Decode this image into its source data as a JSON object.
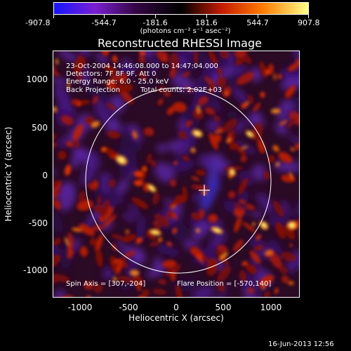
{
  "title": "Reconstructed RHESSI Image",
  "colorbar": {
    "ticks": [
      "-907.8",
      "-544.7",
      "-181.6",
      "181.6",
      "544.7",
      "907.8"
    ],
    "units": "(photons cm⁻² s⁻¹ asec⁻²)",
    "colors": [
      "#1515ff",
      "#7a1fd2",
      "#350645",
      "#000000",
      "#c51b00",
      "#ff7a00",
      "#ffff88"
    ]
  },
  "info": {
    "time_range": "23-Oct-2004 14:46:08.000 to 14:47:04.000",
    "detectors": "Detectors: 7F 8F 9F, Att 0",
    "energy": "Energy Range: 6.0 - 25.0 keV",
    "method": "Back Projection",
    "total_counts": "Total counts: 2.02E+03",
    "spin_axis": "Spin Axis = [307,-204]",
    "flare_position": "Flare Position = [-570,140]"
  },
  "axes": {
    "xlabel": "Heliocentric X (arcsec)",
    "ylabel": "Heliocentric Y (arcsec)",
    "x_ticks": [
      "-1000",
      "-500",
      "0",
      "500",
      "1000"
    ],
    "y_ticks": [
      "1000",
      "500",
      "0",
      "-500",
      "-1000"
    ]
  },
  "timestamp": "16-Jun-2013 12:56",
  "chart_data": {
    "type": "heatmap",
    "title": "Reconstructed RHESSI Image",
    "xlabel": "Heliocentric X (arcsec)",
    "ylabel": "Heliocentric Y (arcsec)",
    "xlim": [
      -1290,
      1290
    ],
    "ylim": [
      -1290,
      1290
    ],
    "color_range": [
      -907.8,
      907.8
    ],
    "solar_disk_center": [
      0,
      0
    ],
    "solar_radius_arcsec": 970,
    "spin_axis": [
      307,
      -204
    ],
    "flare_position": [
      -570,
      140
    ]
  }
}
